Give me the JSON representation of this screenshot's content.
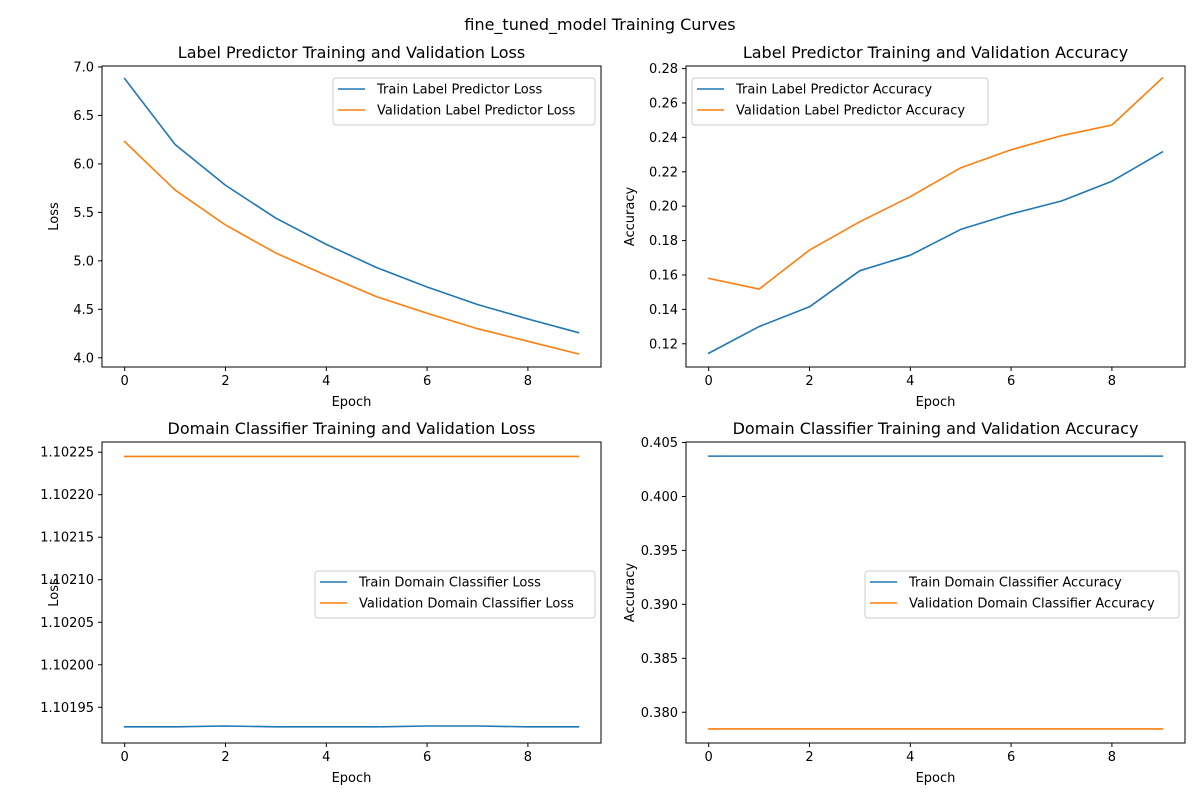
{
  "figure": {
    "title": "fine_tuned_model Training Curves"
  },
  "colors": {
    "train": "#1f77b4",
    "validation": "#ff7f0e",
    "axis": "#000000"
  },
  "chart_data": [
    {
      "type": "line",
      "title": "Label Predictor Training and Validation Loss",
      "xlabel": "Epoch",
      "ylabel": "Loss",
      "x": [
        0,
        1,
        2,
        3,
        4,
        5,
        6,
        7,
        8,
        9
      ],
      "xticks": [
        0,
        2,
        4,
        6,
        8
      ],
      "xticklabels": [
        "0",
        "2",
        "4",
        "6",
        "8"
      ],
      "xlim": [
        -0.45,
        9.45
      ],
      "ylim": [
        3.905,
        7.01
      ],
      "yticks": [
        4.0,
        4.5,
        5.0,
        5.5,
        6.0,
        6.5,
        7.0
      ],
      "yticklabels": [
        "4.0",
        "4.5",
        "5.0",
        "5.5",
        "6.0",
        "6.5",
        "7.0"
      ],
      "grid": false,
      "legend": "top-right",
      "series": [
        {
          "name": "Train Label Predictor Loss",
          "color": "#1f77b4",
          "values": [
            6.88,
            6.2,
            5.78,
            5.44,
            5.17,
            4.93,
            4.73,
            4.55,
            4.4,
            4.26
          ]
        },
        {
          "name": "Validation Label Predictor Loss",
          "color": "#ff7f0e",
          "values": [
            6.23,
            5.73,
            5.37,
            5.08,
            4.85,
            4.63,
            4.46,
            4.3,
            4.17,
            4.04
          ]
        }
      ]
    },
    {
      "type": "line",
      "title": "Label Predictor Training and Validation Accuracy",
      "xlabel": "Epoch",
      "ylabel": "Accuracy",
      "x": [
        0,
        1,
        2,
        3,
        4,
        5,
        6,
        7,
        8,
        9
      ],
      "xticks": [
        0,
        2,
        4,
        6,
        8
      ],
      "xticklabels": [
        "0",
        "2",
        "4",
        "6",
        "8"
      ],
      "xlim": [
        -0.45,
        9.45
      ],
      "ylim": [
        0.1065,
        0.2815
      ],
      "yticks": [
        0.12,
        0.14,
        0.16,
        0.18,
        0.2,
        0.22,
        0.24,
        0.26,
        0.28
      ],
      "yticklabels": [
        "0.12",
        "0.14",
        "0.16",
        "0.18",
        "0.20",
        "0.22",
        "0.24",
        "0.26",
        "0.28"
      ],
      "grid": false,
      "legend": "top-left",
      "series": [
        {
          "name": "Train Label Predictor Accuracy",
          "color": "#1f77b4",
          "values": [
            0.1145,
            0.13,
            0.1415,
            0.1625,
            0.1715,
            0.1865,
            0.1955,
            0.203,
            0.2145,
            0.2315
          ]
        },
        {
          "name": "Validation Label Predictor Accuracy",
          "color": "#ff7f0e",
          "values": [
            0.158,
            0.1518,
            0.1745,
            0.191,
            0.2055,
            0.2223,
            0.2328,
            0.241,
            0.2472,
            0.2745
          ]
        }
      ]
    },
    {
      "type": "line",
      "title": "Domain Classifier Training and Validation Loss",
      "xlabel": "Epoch",
      "ylabel": "Loss",
      "x": [
        0,
        1,
        2,
        3,
        4,
        5,
        6,
        7,
        8,
        9
      ],
      "xticks": [
        0,
        2,
        4,
        6,
        8
      ],
      "xticklabels": [
        "0",
        "2",
        "4",
        "6",
        "8"
      ],
      "xlim": [
        -0.45,
        9.45
      ],
      "ylim": [
        1.101908,
        1.102262
      ],
      "yticks": [
        1.10195,
        1.102,
        1.10205,
        1.1021,
        1.10215,
        1.1022,
        1.10225
      ],
      "yticklabels": [
        "1.10195",
        "1.10200",
        "1.10205",
        "1.10210",
        "1.10215",
        "1.10220",
        "1.10225"
      ],
      "grid": false,
      "legend": "center-right",
      "series": [
        {
          "name": "Train Domain Classifier Loss",
          "color": "#1f77b4",
          "values": [
            1.101927,
            1.101927,
            1.101928,
            1.101927,
            1.101927,
            1.101927,
            1.101928,
            1.101928,
            1.101927,
            1.101927
          ]
        },
        {
          "name": "Validation Domain Classifier Loss",
          "color": "#ff7f0e",
          "values": [
            1.102245,
            1.102245,
            1.102245,
            1.102245,
            1.102245,
            1.102245,
            1.102245,
            1.102245,
            1.102245,
            1.102245
          ]
        }
      ]
    },
    {
      "type": "line",
      "title": "Domain Classifier Training and Validation Accuracy",
      "xlabel": "Epoch",
      "ylabel": "Accuracy",
      "x": [
        0,
        1,
        2,
        3,
        4,
        5,
        6,
        7,
        8,
        9
      ],
      "xticks": [
        0,
        2,
        4,
        6,
        8
      ],
      "xticklabels": [
        "0",
        "2",
        "4",
        "6",
        "8"
      ],
      "xlim": [
        -0.45,
        9.45
      ],
      "ylim": [
        0.37715,
        0.40505
      ],
      "yticks": [
        0.38,
        0.385,
        0.39,
        0.395,
        0.4,
        0.405
      ],
      "yticklabels": [
        "0.380",
        "0.385",
        "0.390",
        "0.395",
        "0.400",
        "0.405"
      ],
      "grid": false,
      "legend": "center-right",
      "series": [
        {
          "name": "Train Domain Classifier Accuracy",
          "color": "#1f77b4",
          "values": [
            0.40374,
            0.40374,
            0.40374,
            0.40374,
            0.40374,
            0.40374,
            0.40374,
            0.40374,
            0.40374,
            0.40374
          ]
        },
        {
          "name": "Validation Domain Classifier Accuracy",
          "color": "#ff7f0e",
          "values": [
            0.37845,
            0.37845,
            0.37845,
            0.37845,
            0.37845,
            0.37845,
            0.37845,
            0.37845,
            0.37845,
            0.37845
          ]
        }
      ]
    }
  ]
}
